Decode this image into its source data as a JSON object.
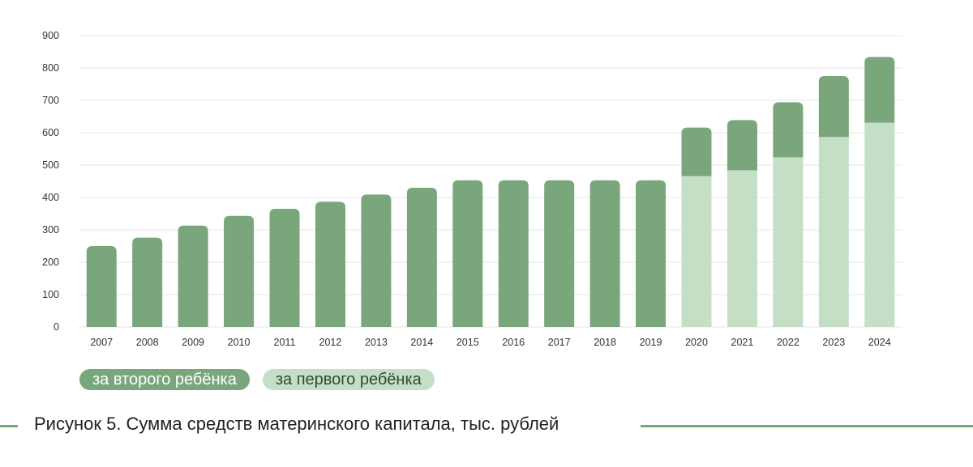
{
  "chart_data": {
    "type": "bar",
    "stacked": true,
    "categories": [
      "2007",
      "2008",
      "2009",
      "2010",
      "2011",
      "2012",
      "2013",
      "2014",
      "2015",
      "2016",
      "2017",
      "2018",
      "2019",
      "2020",
      "2021",
      "2022",
      "2023",
      "2024"
    ],
    "series": [
      {
        "name": "за первого ребёнка",
        "color": "#c5dfc7",
        "values": [
          0,
          0,
          0,
          0,
          0,
          0,
          0,
          0,
          0,
          0,
          0,
          0,
          0,
          466,
          484,
          524,
          587,
          631
        ]
      },
      {
        "name": "за второго ребёнка",
        "color": "#7aa67c",
        "values": [
          250,
          276,
          313,
          343,
          365,
          387,
          409,
          430,
          453,
          453,
          453,
          453,
          453,
          150,
          155,
          170,
          188,
          203
        ]
      }
    ],
    "ylim": [
      0,
      900
    ],
    "yticks": [
      0,
      100,
      200,
      300,
      400,
      500,
      600,
      700,
      800,
      900
    ],
    "grid": true,
    "legend_position": "bottom-left"
  },
  "legend": {
    "second_child": "за второго ребёнка",
    "first_child": "за первого ребёнка"
  },
  "caption": "Рисунок 5. Сумма средств материнского капитала, тыс. рублей",
  "colors": {
    "dark_green": "#7aa67c",
    "light_green": "#c5dfc7",
    "grid": "#e6e6e6"
  }
}
